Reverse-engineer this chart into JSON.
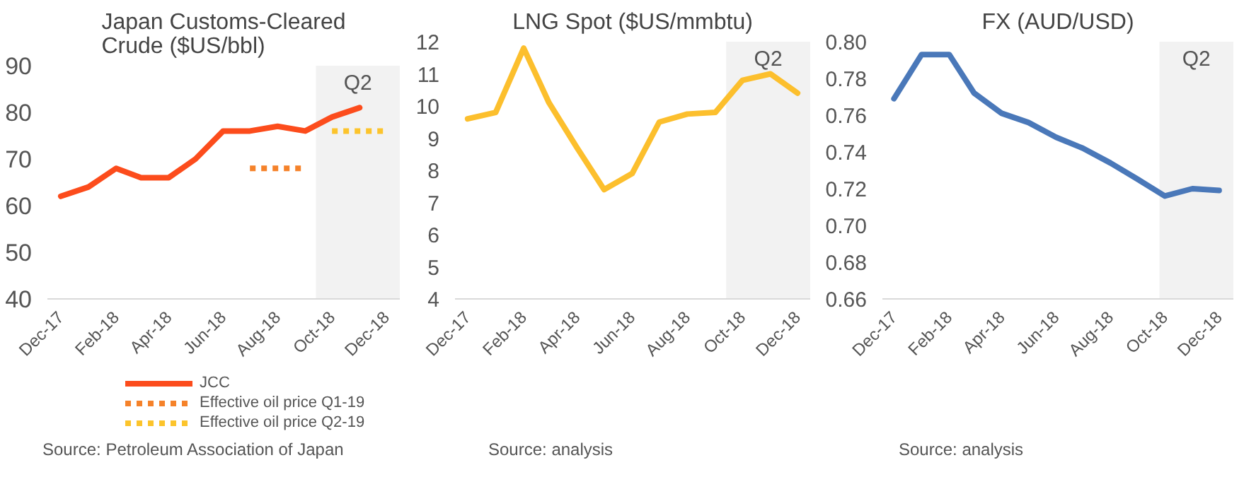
{
  "chart_data": [
    {
      "type": "line",
      "title": "Japan Customs-Cleared\nCrude ($US/bbl)",
      "xlim": [
        "2017-11-16",
        "2018-12-16"
      ],
      "ylim": [
        40,
        90
      ],
      "yticks": [
        40,
        50,
        60,
        70,
        80,
        90
      ],
      "xticks": [
        {
          "value": "2017-12",
          "label": "Dec-17"
        },
        {
          "value": "2018-02",
          "label": "Feb-18"
        },
        {
          "value": "2018-04",
          "label": "Apr-18"
        },
        {
          "value": "2018-06",
          "label": "Jun-18"
        },
        {
          "value": "2018-08",
          "label": "Aug-18"
        },
        {
          "value": "2018-10",
          "label": "Oct-18"
        },
        {
          "value": "2018-12",
          "label": "Dec-18"
        }
      ],
      "series": [
        {
          "name": "JCC",
          "color": "#fc4c1c",
          "line_style": "solid",
          "x": [
            "2017-12",
            "2018-01",
            "2018-02",
            "2018-03",
            "2018-04",
            "2018-05",
            "2018-06",
            "2018-07",
            "2018-08",
            "2018-09",
            "2018-10",
            "2018-11"
          ],
          "values": [
            62,
            64,
            68,
            66,
            66,
            70,
            76,
            76,
            77,
            76,
            79,
            81
          ]
        },
        {
          "name": "Effective oil price Q1-19",
          "color": "#f5822a",
          "line_style": "dotted",
          "x": [
            "2018-07",
            "2018-09"
          ],
          "values": [
            68,
            68
          ]
        },
        {
          "name": "Effective oil price Q2-19",
          "color": "#fcc42c",
          "line_style": "dotted",
          "x": [
            "2018-10",
            "2018-12"
          ],
          "values": [
            76,
            76
          ]
        }
      ],
      "bands": [
        {
          "axis": "x",
          "from": "2018-09-13",
          "to": "2018-12-16",
          "label": "Q2",
          "color": "#f2f2f2"
        }
      ],
      "legend": "bottom",
      "grid": false,
      "annotations": [
        "Source: Petroleum Association of Japan"
      ]
    },
    {
      "type": "line",
      "title": "LNG Spot ($US/mmbtu)",
      "xlim": [
        "2017-11-17",
        "2018-12-15"
      ],
      "ylim": [
        4,
        12
      ],
      "yticks": [
        4,
        5,
        6,
        7,
        8,
        9,
        10,
        11,
        12
      ],
      "xticks": [
        {
          "value": "2017-12",
          "label": "Dec-17"
        },
        {
          "value": "2018-02",
          "label": "Feb-18"
        },
        {
          "value": "2018-04",
          "label": "Apr-18"
        },
        {
          "value": "2018-06",
          "label": "Jun-18"
        },
        {
          "value": "2018-08",
          "label": "Aug-18"
        },
        {
          "value": "2018-10",
          "label": "Oct-18"
        },
        {
          "value": "2018-12",
          "label": "Dec-18"
        }
      ],
      "series": [
        {
          "color": "#fcbf2d",
          "line_style": "solid",
          "x": [
            "2017-12",
            "2018-01",
            "2018-02",
            "2018-03",
            "2018-04",
            "2018-05",
            "2018-06",
            "2018-07",
            "2018-08",
            "2018-09",
            "2018-10",
            "2018-11",
            "2018-12"
          ],
          "values": [
            9.6,
            9.8,
            11.8,
            10.1,
            8.7,
            7.4,
            7.9,
            9.5,
            9.75,
            9.8,
            10.8,
            11.0,
            10.4
          ]
        }
      ],
      "bands": [
        {
          "axis": "x",
          "from": "2018-09-13",
          "to": "2018-12-15",
          "label": "Q2",
          "color": "#f2f2f2"
        }
      ],
      "grid": false,
      "annotations": [
        "Source: analysis"
      ]
    },
    {
      "type": "line",
      "title": "FX (AUD/USD)",
      "xlim": [
        "2017-11-18",
        "2018-12-17"
      ],
      "ylim": [
        0.66,
        0.8
      ],
      "yticks": [
        {
          "value": 0.66,
          "label": "0.66"
        },
        {
          "value": 0.68,
          "label": "0.68"
        },
        {
          "value": 0.7,
          "label": "0.70"
        },
        {
          "value": 0.72,
          "label": "0.72"
        },
        {
          "value": 0.74,
          "label": "0.74"
        },
        {
          "value": 0.76,
          "label": "0.76"
        },
        {
          "value": 0.78,
          "label": "0.78"
        },
        {
          "value": 0.8,
          "label": "0.80"
        }
      ],
      "xticks": [
        {
          "value": "2017-12",
          "label": "Dec-17"
        },
        {
          "value": "2018-02",
          "label": "Feb-18"
        },
        {
          "value": "2018-04",
          "label": "Apr-18"
        },
        {
          "value": "2018-06",
          "label": "Jun-18"
        },
        {
          "value": "2018-08",
          "label": "Aug-18"
        },
        {
          "value": "2018-10",
          "label": "Oct-18"
        },
        {
          "value": "2018-12",
          "label": "Dec-18"
        }
      ],
      "series": [
        {
          "color": "#4a78b9",
          "line_style": "solid",
          "x": [
            "2017-12",
            "2018-01",
            "2018-02",
            "2018-03",
            "2018-04",
            "2018-05",
            "2018-06",
            "2018-07",
            "2018-08",
            "2018-09",
            "2018-10",
            "2018-11",
            "2018-12"
          ],
          "values": [
            0.769,
            0.793,
            0.793,
            0.772,
            0.761,
            0.756,
            0.748,
            0.742,
            0.734,
            0.725,
            0.716,
            0.72,
            0.719
          ]
        }
      ],
      "bands": [
        {
          "axis": "x",
          "from": "2018-09-25",
          "to": "2018-12-17",
          "label": "Q2",
          "color": "#f2f2f2"
        }
      ],
      "grid": false,
      "annotations": [
        "Source: analysis"
      ]
    }
  ]
}
